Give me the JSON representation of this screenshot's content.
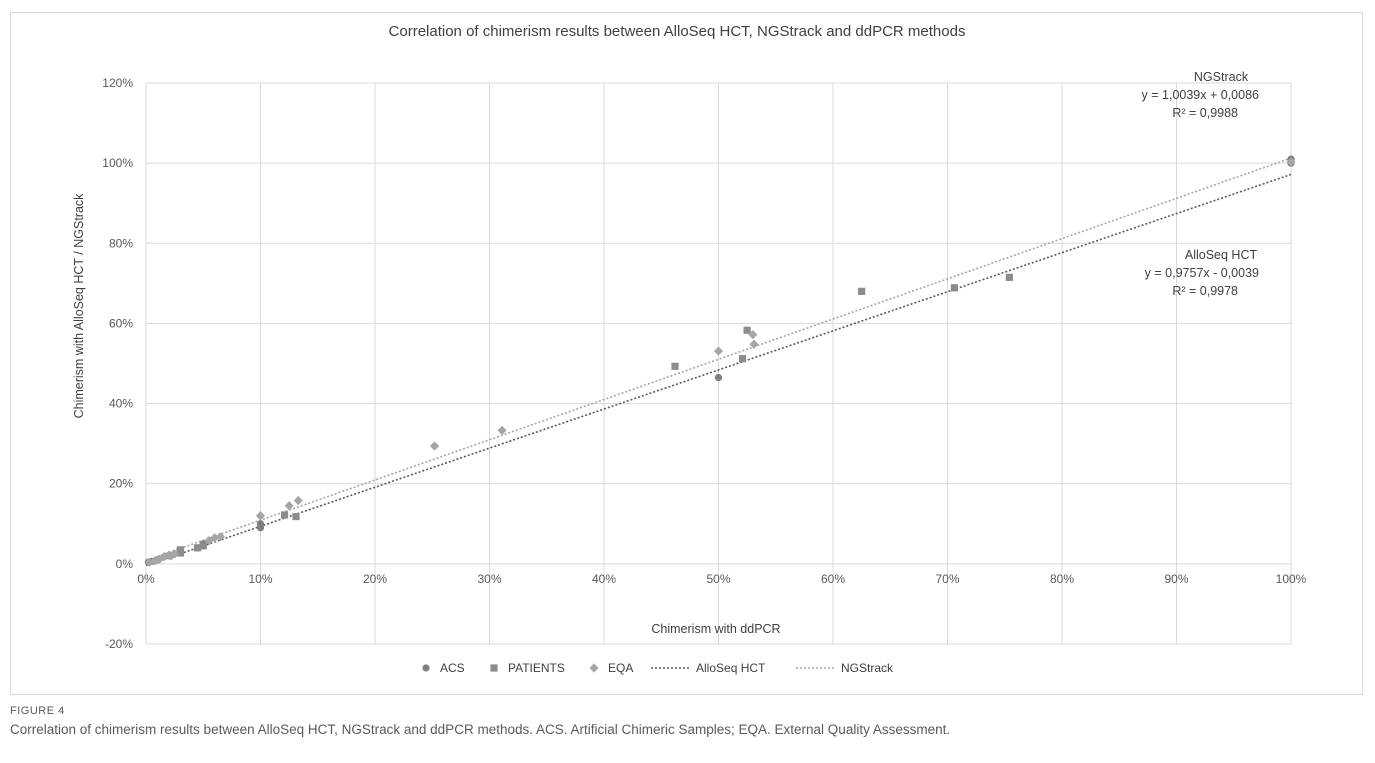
{
  "caption": {
    "label": "FIGURE 4",
    "text": "Correlation of chimerism results between AlloSeq HCT, NGStrack and ddPCR methods. ACS. Artificial Chimeric Samples; EQA. External Quality Assessment."
  },
  "chart_data": {
    "type": "scatter",
    "title": "Correlation of chimerism results between AlloSeq HCT, NGStrack and ddPCR methods",
    "xlabel": "Chimerism with ddPCR",
    "ylabel": "Chimerism with AlloSeq HCT / NGStrack",
    "xlim": [
      0,
      1
    ],
    "ylim": [
      -0.2,
      1.2
    ],
    "x_ticks": [
      0,
      0.1,
      0.2,
      0.3,
      0.4,
      0.5,
      0.6,
      0.7,
      0.8,
      0.9,
      1.0
    ],
    "x_tick_labels": [
      "0%",
      "10%",
      "20%",
      "30%",
      "40%",
      "50%",
      "60%",
      "70%",
      "80%",
      "90%",
      "100%"
    ],
    "y_ticks": [
      -0.2,
      0,
      0.2,
      0.4,
      0.6,
      0.8,
      1.0,
      1.2
    ],
    "y_tick_labels": [
      "-20%",
      "0%",
      "20%",
      "40%",
      "60%",
      "80%",
      "100%",
      "120%"
    ],
    "grid": true,
    "legend_position": "bottom",
    "series": [
      {
        "name": "ACS",
        "marker": "circle",
        "color": "#7f7f7f",
        "points": [
          [
            0.002,
            0.004
          ],
          [
            0.005,
            0.006
          ],
          [
            0.01,
            0.01
          ],
          [
            0.02,
            0.02
          ],
          [
            0.03,
            0.03
          ],
          [
            0.05,
            0.05
          ],
          [
            0.1,
            0.09
          ],
          [
            0.1,
            0.1
          ],
          [
            0.5,
            0.465
          ],
          [
            1.0,
            1.01
          ],
          [
            1.0,
            1.0
          ]
        ]
      },
      {
        "name": "PATIENTS",
        "marker": "square",
        "color": "#8c8c8c",
        "points": [
          [
            0.03,
            0.035
          ],
          [
            0.03,
            0.027
          ],
          [
            0.045,
            0.04
          ],
          [
            0.05,
            0.045
          ],
          [
            0.121,
            0.122
          ],
          [
            0.131,
            0.118
          ],
          [
            0.462,
            0.493
          ],
          [
            0.521,
            0.512
          ],
          [
            0.525,
            0.583
          ],
          [
            0.625,
            0.68
          ],
          [
            0.706,
            0.689
          ],
          [
            0.754,
            0.715
          ]
        ]
      },
      {
        "name": "EQA",
        "marker": "diamond",
        "color": "#a6a6a6",
        "points": [
          [
            0.003,
            0.004
          ],
          [
            0.008,
            0.008
          ],
          [
            0.012,
            0.012
          ],
          [
            0.016,
            0.018
          ],
          [
            0.02,
            0.022
          ],
          [
            0.022,
            0.02
          ],
          [
            0.025,
            0.025
          ],
          [
            0.055,
            0.058
          ],
          [
            0.06,
            0.065
          ],
          [
            0.065,
            0.068
          ],
          [
            0.1,
            0.12
          ],
          [
            0.125,
            0.145
          ],
          [
            0.133,
            0.158
          ],
          [
            0.252,
            0.294
          ],
          [
            0.311,
            0.333
          ],
          [
            0.5,
            0.531
          ],
          [
            0.53,
            0.572
          ],
          [
            0.531,
            0.548
          ],
          [
            1.0,
            1.003
          ]
        ]
      }
    ],
    "trendlines": [
      {
        "name": "AlloSeq HCT",
        "slope": 0.9757,
        "intercept": -0.0039,
        "r2": 0.9978,
        "color": "#595959",
        "label_lines": [
          "AlloSeq HCT",
          "y = 0,9757x - 0,0039",
          "R² = 0,9978"
        ]
      },
      {
        "name": "NGStrack",
        "slope": 1.0039,
        "intercept": 0.0086,
        "r2": 0.9988,
        "color": "#a6a6a6",
        "label_lines": [
          "NGStrack",
          "y = 1,0039x + 0,0086",
          "R² = 0,9988"
        ]
      }
    ],
    "legend": [
      "ACS",
      "PATIENTS",
      "EQA",
      "AlloSeq HCT",
      "NGStrack"
    ]
  }
}
